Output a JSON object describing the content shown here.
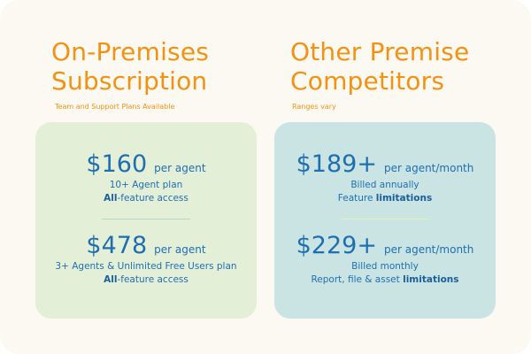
{
  "left": {
    "heading_line1": "On-Premises",
    "heading_line2": "Subscription",
    "subtitle": "Team and Support Plans Available",
    "plans": [
      {
        "price": "$160",
        "unit": "per agent",
        "line1": "10+ Agent plan",
        "line2_bold": "All",
        "line2_rest": "-feature access"
      },
      {
        "price": "$478",
        "unit": "per agent",
        "line1": "3+ Agents & Unlimited Free Users plan",
        "line2_bold": "All",
        "line2_rest": "-feature access"
      }
    ]
  },
  "right": {
    "heading_line1": "Other Premise",
    "heading_line2": "Competitors",
    "subtitle": "Ranges vary",
    "plans": [
      {
        "price": "$189+",
        "unit": "per agent/month",
        "line1": "Billed annually",
        "line2_rest": "Feature ",
        "line2_bold": "limitations"
      },
      {
        "price": "$229+",
        "unit": "per agent/month",
        "line1": "Billed monthly",
        "line2_rest": "Report, file & asset ",
        "line2_bold": "limitations"
      }
    ]
  },
  "colors": {
    "accent_orange": "#f39212",
    "price_blue": "#1f6fb0",
    "card_green": "#e4efd8",
    "card_blue": "#c9e4e3"
  }
}
